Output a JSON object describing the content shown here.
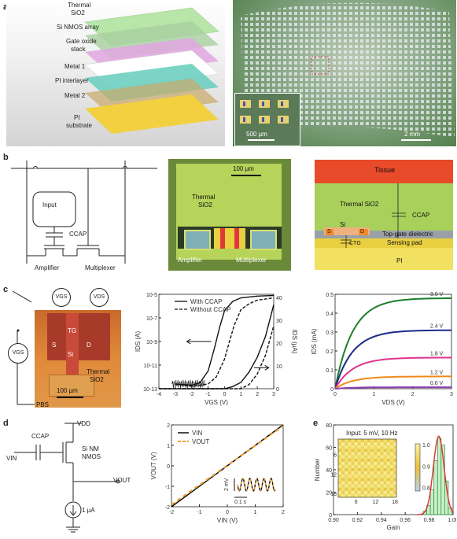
{
  "panel_labels": {
    "a": "a",
    "b": "b",
    "c": "c",
    "d": "d",
    "e": "e"
  },
  "a": {
    "layers": [
      "Thermal",
      "SiO2",
      "Si NMOS array",
      "Gate oxide",
      "stack",
      "Metal 1",
      "PI interlayer",
      "Metal 2",
      "PI",
      "substrate"
    ],
    "scalebar_inset": "500 µm",
    "scalebar_main": "2 mm"
  },
  "b": {
    "circuit": {
      "input": "Input",
      "ccap": "CCAP",
      "amplifier": "Amplifier",
      "multiplexer": "Multiplexer"
    },
    "micrograph": {
      "scale": "100 µm",
      "thermal": "Thermal",
      "sio2": "SiO2",
      "amplifier": "Amplifier",
      "multiplexer": "Multiplexer"
    },
    "cross_section": {
      "tissue": "Tissue",
      "thermal": "Thermal SiO2",
      "si": "Si",
      "s": "S",
      "d": "D",
      "ctg": "CTG",
      "ccap": "CCAP",
      "topgate": "Top-gate dielectric",
      "sensing": "Sensing pad",
      "pi": "PI"
    }
  },
  "c": {
    "photo": {
      "vgs_top": "VGS",
      "vds_top": "VDS",
      "vgs_left": "VGS",
      "s": "S",
      "tg": "TG",
      "d": "D",
      "si": "Si",
      "thermal": "Thermal",
      "sio2": "SiO2",
      "scale": "100 µm",
      "pbs": "PBS"
    }
  },
  "d": {
    "circuit": {
      "vdd": "VDD",
      "ccap": "CCAP",
      "vin": "VIN",
      "sinm": "Si NM",
      "nmos": "NMOS",
      "vout": "VOUT",
      "current": "1 µA"
    },
    "inset": {
      "mv": "2 mV",
      "s": "0.1 s"
    }
  },
  "e": {
    "inset_title": "Input: 5 mV, 10 Hz"
  },
  "chart_data": [
    {
      "id": "transfer",
      "type": "line",
      "xlabel": "VGS (V)",
      "ylabel_left": "IDS (A)",
      "ylabel_right": "IDS (µA)",
      "xlim": [
        -4,
        3
      ],
      "xticks": [
        -4,
        -3,
        -2,
        -1,
        0,
        1,
        2,
        3
      ],
      "yticks_left": [
        "10-5",
        "10-7",
        "10-9",
        "10-11",
        "10-13"
      ],
      "yticks_right": [
        "40",
        "30",
        "20",
        "10",
        "0"
      ],
      "series": [
        {
          "name": "With CCAP",
          "style": "solid",
          "x": [
            -3,
            -2,
            -1.5,
            -1,
            -0.6,
            -0.3,
            0,
            0.5,
            1,
            2,
            3
          ],
          "y": [
            -12.6,
            -12.7,
            -12.5,
            -11.5,
            -9.5,
            -7.8,
            -6.4,
            -5.6,
            -5.3,
            -5.15,
            -5.1
          ]
        },
        {
          "name": "Without CCAP",
          "style": "dashed",
          "x": [
            -3,
            -2,
            -1,
            -0.5,
            0,
            0.3,
            0.6,
            1,
            1.5,
            2,
            3
          ],
          "y": [
            -12.6,
            -12.8,
            -12.6,
            -12,
            -10.5,
            -9,
            -7.6,
            -6.3,
            -5.8,
            -5.5,
            -5.3
          ]
        },
        {
          "name": "",
          "style": "solid",
          "axis": "right",
          "x": [
            -4,
            0,
            0.5,
            1,
            1.5,
            2,
            2.5,
            3
          ],
          "y": [
            0,
            0,
            1,
            3,
            8,
            15,
            25,
            40
          ]
        },
        {
          "name": "",
          "style": "dashed",
          "axis": "right",
          "x": [
            -4,
            1,
            1.5,
            2,
            2.5,
            3
          ],
          "y": [
            0,
            0,
            2,
            7,
            16,
            30
          ]
        }
      ],
      "noise_x": [
        -3.2,
        -1.2
      ]
    },
    {
      "id": "output",
      "type": "line",
      "xlabel": "VDS (V)",
      "ylabel": "IDS (mA)",
      "xlim": [
        0,
        3
      ],
      "ylim": [
        0,
        0.5
      ],
      "xticks": [
        0,
        1,
        2,
        3
      ],
      "yticks": [
        0,
        0.1,
        0.2,
        0.3,
        0.4,
        0.5
      ],
      "series": [
        {
          "name": "3.0 V",
          "color": "#1a7f2a",
          "sat": 0.48
        },
        {
          "name": "2.4 V",
          "color": "#1b2a8a",
          "sat": 0.31
        },
        {
          "name": "1.8 V",
          "color": "#e0338c",
          "sat": 0.165
        },
        {
          "name": "1.2 V",
          "color": "#f08a1a",
          "sat": 0.065
        },
        {
          "name": "0.6 V",
          "color": "#8a3fb0",
          "sat": 0.008
        }
      ]
    },
    {
      "id": "gain_io",
      "type": "line",
      "xlabel": "VIN (V)",
      "ylabel": "VOUT (V)",
      "xlim": [
        -2,
        2
      ],
      "ylim": [
        -2,
        2
      ],
      "xticks": [
        -2,
        -1,
        0,
        1,
        2
      ],
      "yticks": [
        -2,
        -1,
        0,
        1,
        2
      ],
      "series": [
        {
          "name": "VIN",
          "color": "#000000",
          "style": "solid",
          "x": [
            -2,
            2
          ],
          "y": [
            -2,
            2
          ]
        },
        {
          "name": "VOUT",
          "color": "#f0a030",
          "style": "dashed",
          "x": [
            -2,
            2
          ],
          "y": [
            -1.9,
            1.95
          ]
        }
      ]
    },
    {
      "id": "gain_hist",
      "type": "bar",
      "xlabel": "Gain",
      "ylabel": "Number",
      "xlim": [
        0.9,
        1.0
      ],
      "ylim": [
        0,
        80
      ],
      "xticks": [
        "0.90",
        "0.92",
        "0.94",
        "0.96",
        "0.98",
        "1.00"
      ],
      "yticks": [
        0,
        20,
        40,
        60,
        80
      ],
      "bins": [
        0.975,
        0.978,
        0.981,
        0.984,
        0.987,
        0.99,
        0.993,
        0.996
      ],
      "counts": [
        3,
        8,
        22,
        48,
        68,
        62,
        30,
        6
      ],
      "colorbar": {
        "ticks": [
          "1.0",
          "0.9",
          "0.8"
        ]
      },
      "inset_xticks": [
        "6",
        "12",
        "18"
      ],
      "inset_yticks": [
        "6",
        "12",
        "18"
      ]
    }
  ]
}
